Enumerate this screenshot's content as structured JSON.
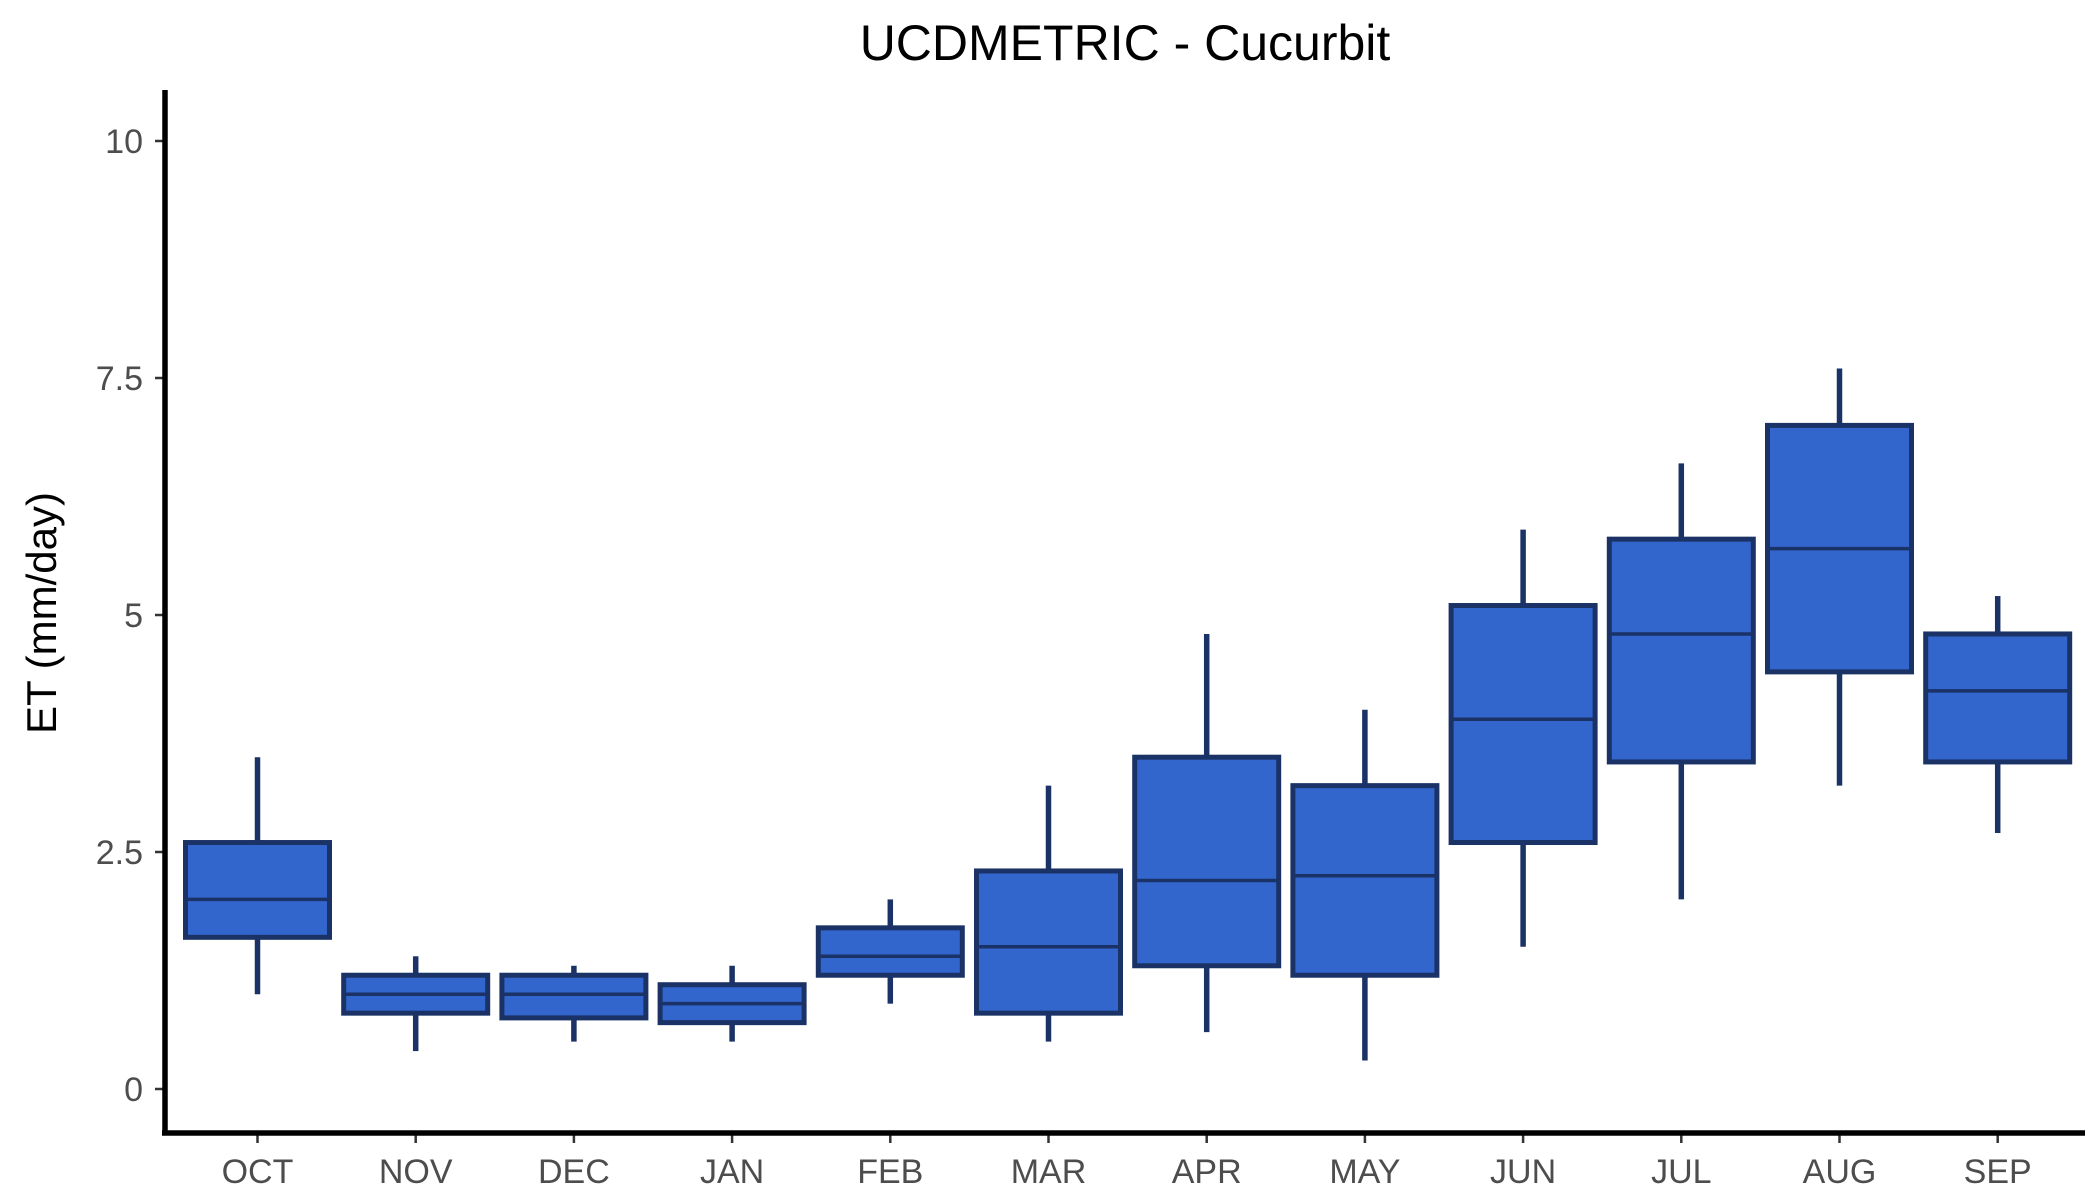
{
  "chart_data": {
    "type": "boxplot",
    "title": "UCDMETRIC - Cucurbit",
    "xlabel": "",
    "ylabel": "ET (mm/day)",
    "ylim": [
      -0.5,
      10.5
    ],
    "yticks": [
      0,
      2.5,
      5,
      7.5,
      10
    ],
    "ytick_labels": [
      "0",
      "2.5",
      "5",
      "7.5",
      "10"
    ],
    "grid": false,
    "legend": "none",
    "fill_color": "#3366cc",
    "edge_color": "#1a3266",
    "categories": [
      "OCT",
      "NOV",
      "DEC",
      "JAN",
      "FEB",
      "MAR",
      "APR",
      "MAY",
      "JUN",
      "JUL",
      "AUG",
      "SEP"
    ],
    "boxes": [
      {
        "label": "OCT",
        "min": 1.0,
        "q1": 1.6,
        "median": 2.0,
        "q3": 2.6,
        "max": 3.5
      },
      {
        "label": "NOV",
        "min": 0.4,
        "q1": 0.8,
        "median": 1.0,
        "q3": 1.2,
        "max": 1.4
      },
      {
        "label": "DEC",
        "min": 0.5,
        "q1": 0.75,
        "median": 1.0,
        "q3": 1.2,
        "max": 1.3
      },
      {
        "label": "JAN",
        "min": 0.5,
        "q1": 0.7,
        "median": 0.9,
        "q3": 1.1,
        "max": 1.3
      },
      {
        "label": "FEB",
        "min": 0.9,
        "q1": 1.2,
        "median": 1.4,
        "q3": 1.7,
        "max": 2.0
      },
      {
        "label": "MAR",
        "min": 0.5,
        "q1": 0.8,
        "median": 1.5,
        "q3": 2.3,
        "max": 3.2
      },
      {
        "label": "APR",
        "min": 0.6,
        "q1": 1.3,
        "median": 2.2,
        "q3": 3.5,
        "max": 4.8
      },
      {
        "label": "MAY",
        "min": 0.3,
        "q1": 1.2,
        "median": 2.25,
        "q3": 3.2,
        "max": 4.0
      },
      {
        "label": "JUN",
        "min": 1.5,
        "q1": 2.6,
        "median": 3.9,
        "q3": 5.1,
        "max": 5.9
      },
      {
        "label": "JUL",
        "min": 2.0,
        "q1": 3.45,
        "median": 4.8,
        "q3": 5.8,
        "max": 6.6
      },
      {
        "label": "AUG",
        "min": 3.2,
        "q1": 4.4,
        "median": 5.7,
        "q3": 7.0,
        "max": 7.6
      },
      {
        "label": "SEP",
        "min": 2.7,
        "q1": 3.45,
        "median": 4.2,
        "q3": 4.8,
        "max": 5.2
      }
    ]
  }
}
